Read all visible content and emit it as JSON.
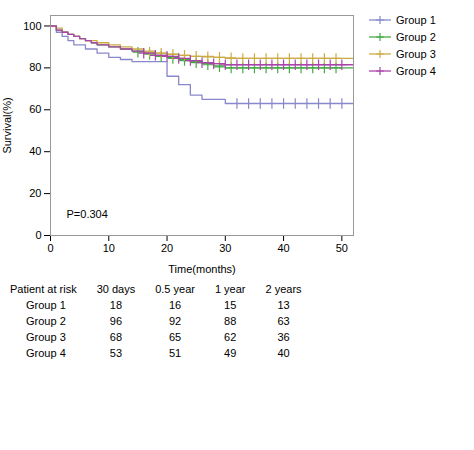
{
  "chart_data": {
    "type": "step",
    "xlabel": "Time(months)",
    "ylabel": "Survival(%)",
    "xlim": [
      0,
      52
    ],
    "ylim": [
      0,
      105
    ],
    "xticks": [
      0,
      10,
      20,
      30,
      40,
      50
    ],
    "yticks": [
      0,
      20,
      40,
      60,
      80,
      100
    ],
    "annotation": "P=0.304",
    "legend": "right",
    "series": [
      {
        "name": "Group 1",
        "color": "#8888CC",
        "marker": "plus",
        "x": [
          0,
          1,
          2,
          3,
          4,
          6,
          8,
          10,
          12,
          14,
          20,
          22,
          24,
          26,
          30,
          52
        ],
        "values": [
          100,
          97,
          95,
          93,
          91,
          89,
          87,
          85,
          84,
          83,
          76,
          72,
          67,
          65,
          63,
          63
        ],
        "censor_x": [
          32,
          34,
          36,
          38,
          40,
          42,
          44,
          46,
          48,
          50
        ],
        "censor_y": [
          63,
          63,
          63,
          63,
          63,
          63,
          63,
          63,
          63,
          63
        ]
      },
      {
        "name": "Group 2",
        "color": "#44AA44",
        "marker": "plus",
        "x": [
          0,
          1,
          2,
          3,
          4,
          5,
          6,
          7,
          8,
          10,
          12,
          14,
          16,
          18,
          20,
          22,
          24,
          26,
          28,
          30,
          52
        ],
        "values": [
          100,
          98,
          97,
          96,
          95,
          94,
          93,
          92,
          91,
          90,
          89,
          88,
          87,
          86,
          85,
          84,
          83,
          82,
          81,
          80,
          80
        ],
        "censor_x": [
          15,
          17,
          19,
          21,
          23,
          25,
          27,
          29,
          31,
          33,
          35,
          37,
          39,
          41,
          43,
          45,
          47,
          49
        ],
        "censor_y": [
          87.5,
          86.5,
          85.5,
          84.5,
          83.5,
          82.5,
          81.5,
          80.5,
          80,
          80,
          80,
          80,
          80,
          80,
          80,
          80,
          80,
          80
        ]
      },
      {
        "name": "Group 3",
        "color": "#CCAA44",
        "marker": "plus",
        "x": [
          0,
          1,
          2,
          3,
          4,
          5,
          6,
          8,
          10,
          12,
          14,
          16,
          18,
          20,
          22,
          24,
          28,
          30,
          52
        ],
        "values": [
          100,
          99,
          97,
          96,
          95,
          94,
          93,
          92,
          91,
          90,
          89,
          88,
          87,
          86.5,
          86,
          85.5,
          85,
          84.5,
          84.5
        ],
        "censor_x": [
          17,
          19,
          21,
          23,
          25,
          27,
          29,
          31,
          33,
          35,
          37,
          39,
          41,
          43,
          45,
          47,
          49
        ],
        "censor_y": [
          87.5,
          87,
          86.5,
          86,
          85.5,
          85.3,
          85,
          84.8,
          84.5,
          84.5,
          84.5,
          84.5,
          84.5,
          84.5,
          84.5,
          84.5,
          84.5
        ]
      },
      {
        "name": "Group 4",
        "color": "#AA44AA",
        "marker": "plus",
        "x": [
          0,
          1,
          2,
          3,
          4,
          5,
          6,
          7,
          8,
          10,
          12,
          14,
          16,
          18,
          20,
          22,
          24,
          26,
          28,
          30,
          52
        ],
        "values": [
          100,
          98,
          97,
          96,
          95,
          94,
          93,
          92,
          91,
          90,
          89,
          88,
          87,
          86,
          85.5,
          84.5,
          83.5,
          82.5,
          82,
          81.5,
          81.5
        ],
        "censor_x": [
          16,
          18,
          20,
          22,
          24,
          26,
          28,
          30,
          32,
          34,
          36,
          38,
          40,
          42,
          44,
          46,
          48,
          50
        ],
        "censor_y": [
          87,
          86,
          85.5,
          84.5,
          83.5,
          82.5,
          82,
          81.5,
          81.5,
          81.5,
          81.5,
          81.5,
          81.5,
          81.5,
          81.5,
          81.5,
          81.5,
          81.5
        ]
      }
    ],
    "table": {
      "header": [
        "Patient at risk",
        "30 days",
        "0.5 year",
        "1 year",
        "2 years"
      ],
      "rows": [
        [
          "Group 1",
          "18",
          "16",
          "15",
          "13"
        ],
        [
          "Group 2",
          "96",
          "92",
          "88",
          "63"
        ],
        [
          "Group 3",
          "68",
          "65",
          "62",
          "36"
        ],
        [
          "Group 4",
          "53",
          "51",
          "49",
          "40"
        ]
      ]
    }
  }
}
